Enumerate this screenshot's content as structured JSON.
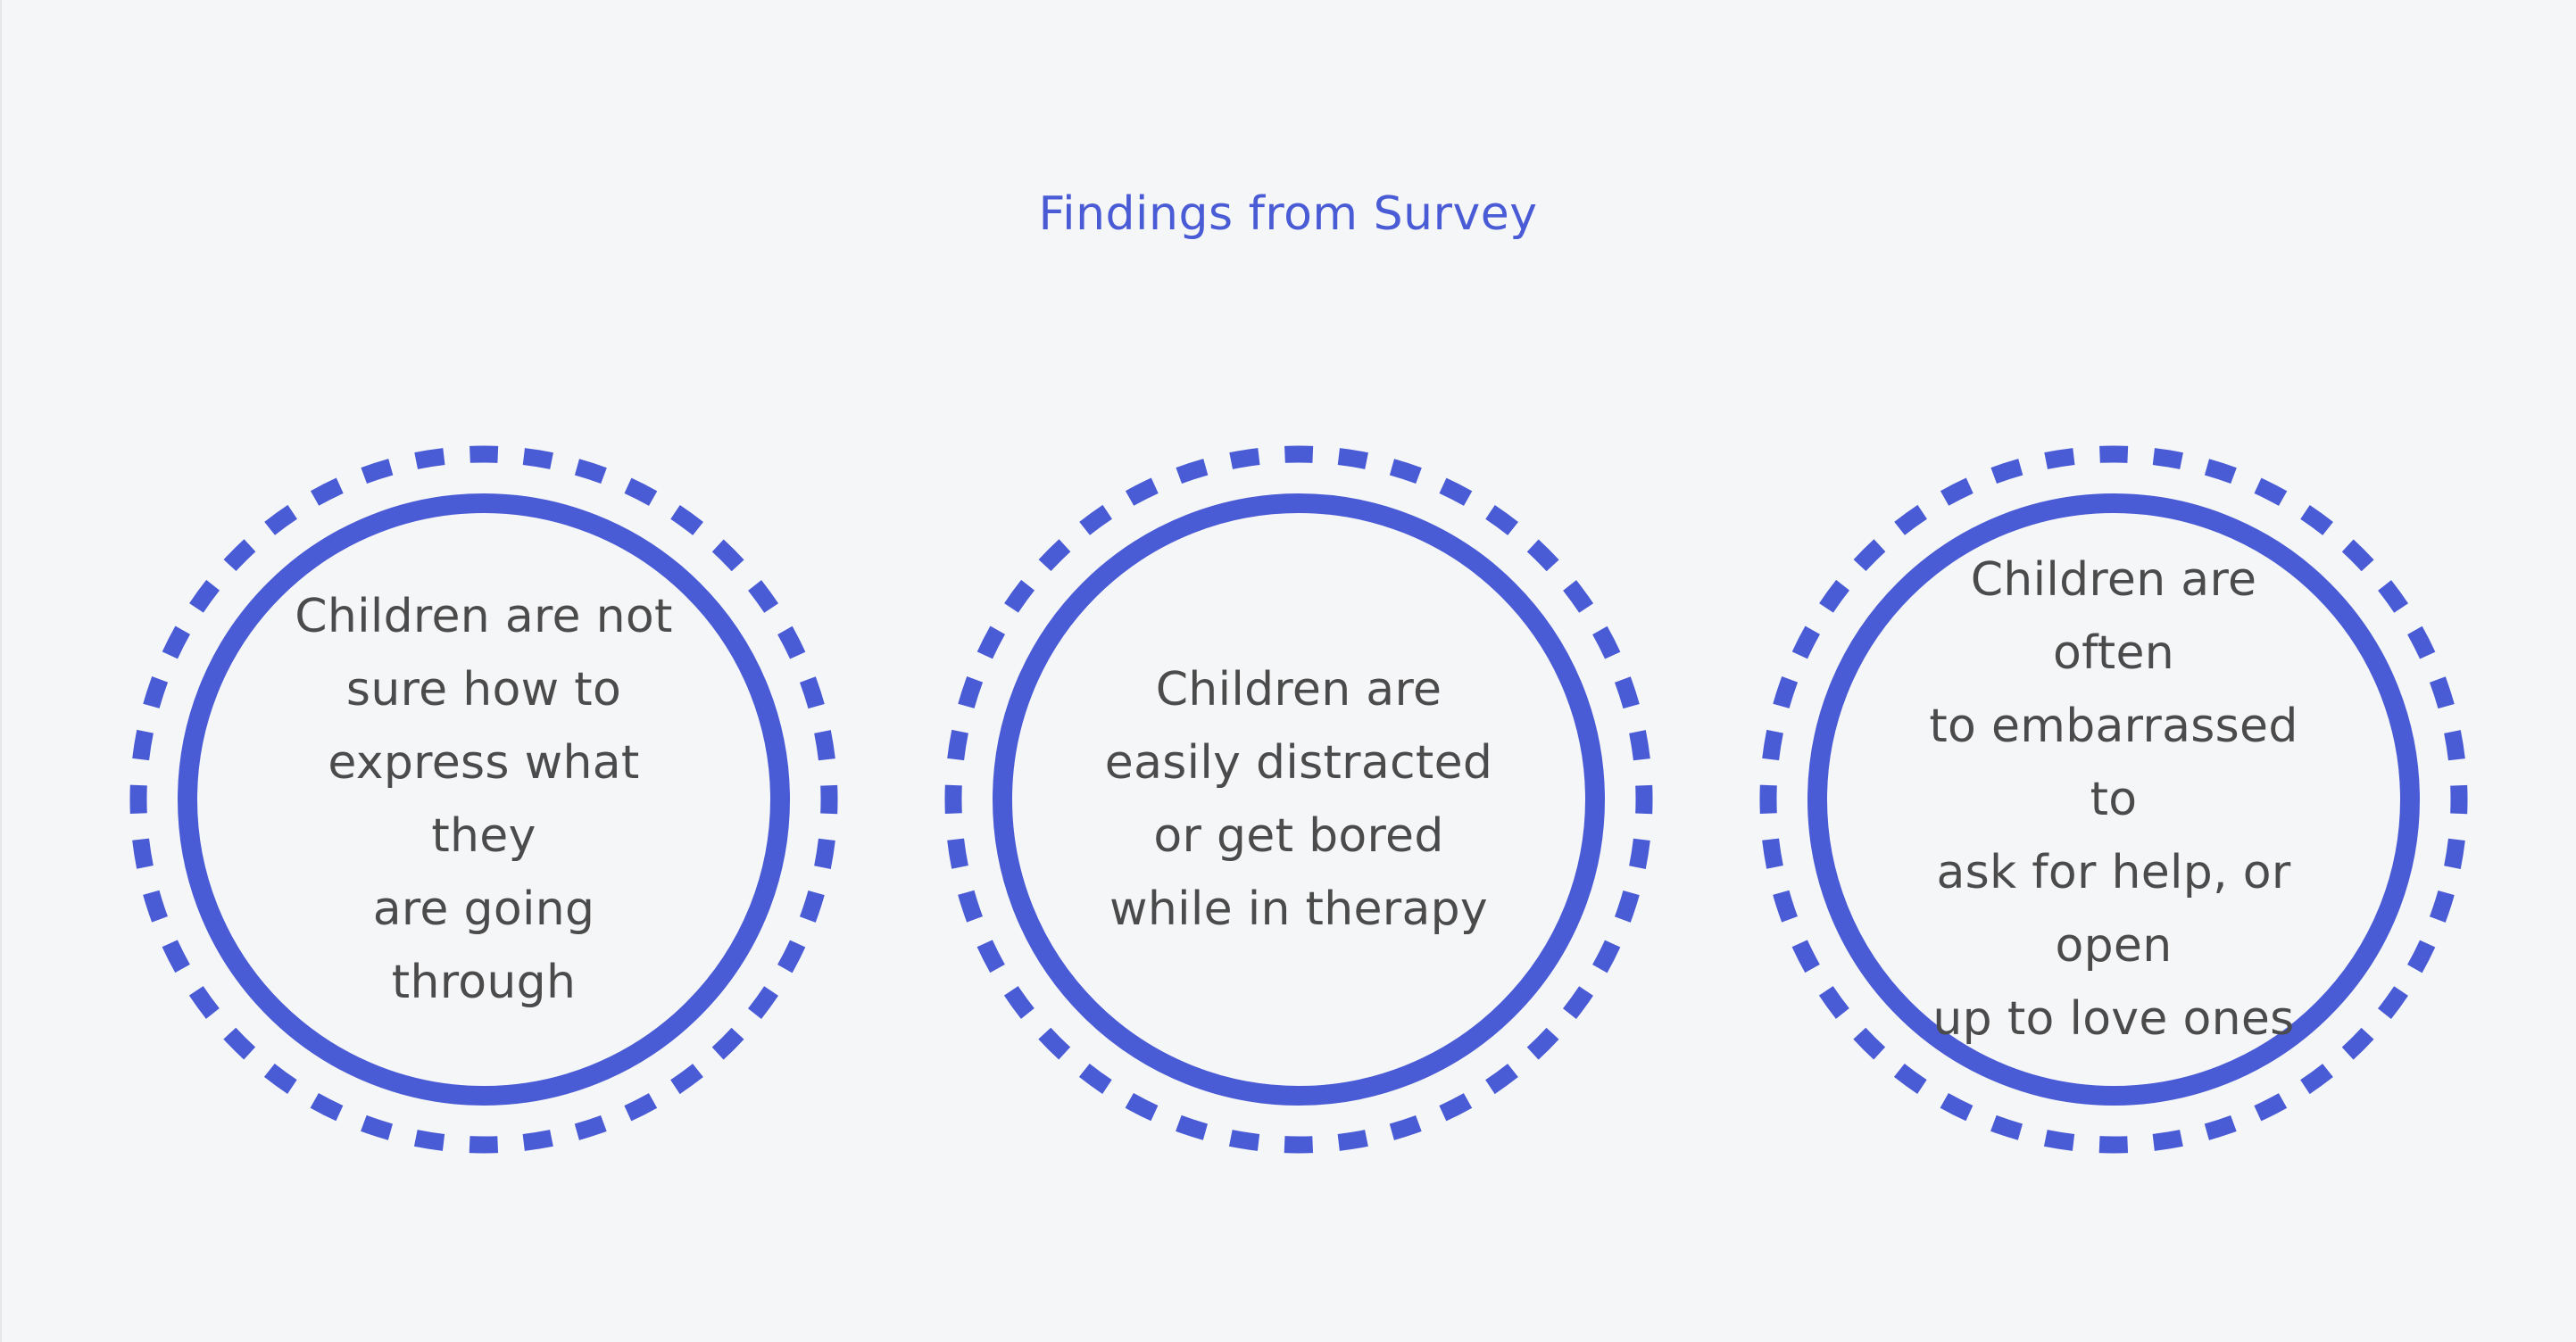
{
  "title": "Findings from Survey",
  "colors": {
    "accent": "#4a5bd6",
    "text": "#4b4b4b",
    "background": "#f5f6f8"
  },
  "findings": [
    {
      "text": "Children are not\nsure how to\nexpress what they\nare going through"
    },
    {
      "text": "Children are\neasily distracted\nor get bored\nwhile in therapy"
    },
    {
      "text": "Children are often\nto embarrassed to\nask for help, or open\nup to love ones"
    }
  ]
}
